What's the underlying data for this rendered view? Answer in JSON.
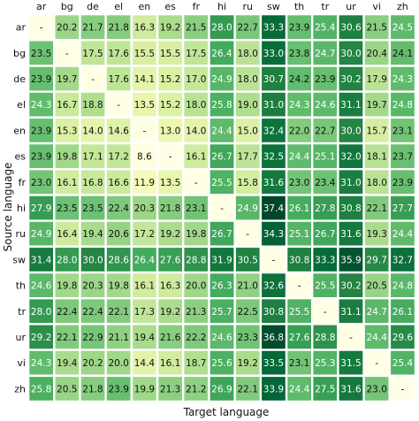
{
  "chart_data": {
    "type": "heatmap",
    "title": "",
    "xlabel": "Target language",
    "ylabel": "Source language",
    "x_categories": [
      "ar",
      "bg",
      "de",
      "el",
      "en",
      "es",
      "fr",
      "hi",
      "ru",
      "sw",
      "th",
      "tr",
      "ur",
      "vi",
      "zh"
    ],
    "y_categories": [
      "ar",
      "bg",
      "de",
      "el",
      "en",
      "es",
      "fr",
      "hi",
      "ru",
      "sw",
      "th",
      "tr",
      "ur",
      "vi",
      "zh"
    ],
    "x_axis_position": "top",
    "colormap": "YlGn",
    "color_range": [
      8,
      37.5
    ],
    "missing_label": "-",
    "values": [
      [
        null,
        20.2,
        21.7,
        21.8,
        16.3,
        19.2,
        21.5,
        28.0,
        22.7,
        33.3,
        23.9,
        25.4,
        30.6,
        21.5,
        24.5
      ],
      [
        23.5,
        null,
        17.5,
        17.6,
        15.5,
        15.5,
        17.5,
        26.4,
        18.0,
        33.0,
        23.8,
        24.7,
        30.0,
        20.4,
        24.1
      ],
      [
        23.9,
        19.7,
        null,
        17.6,
        14.1,
        15.2,
        17.0,
        24.9,
        18.0,
        30.7,
        24.2,
        23.9,
        30.2,
        17.9,
        24.3
      ],
      [
        24.3,
        16.7,
        18.8,
        null,
        13.5,
        15.2,
        18.0,
        25.8,
        19.0,
        31.0,
        24.3,
        24.6,
        31.1,
        19.7,
        24.8
      ],
      [
        23.9,
        15.3,
        14.0,
        14.6,
        null,
        13.0,
        14.0,
        24.4,
        15.0,
        32.4,
        22.0,
        22.7,
        30.0,
        15.7,
        23.1
      ],
      [
        23.9,
        19.8,
        17.1,
        17.2,
        8.6,
        null,
        16.1,
        26.7,
        17.7,
        32.5,
        24.4,
        25.1,
        32.0,
        18.1,
        23.7
      ],
      [
        23.0,
        16.1,
        16.8,
        16.6,
        11.9,
        13.5,
        null,
        25.5,
        15.8,
        31.6,
        23.0,
        23.4,
        31.0,
        18.0,
        23.9
      ],
      [
        27.9,
        23.5,
        23.5,
        22.4,
        20.3,
        21.8,
        23.1,
        null,
        24.9,
        37.4,
        26.1,
        27.8,
        30.8,
        22.1,
        27.7
      ],
      [
        24.9,
        16.4,
        19.4,
        20.6,
        17.2,
        19.2,
        19.8,
        26.7,
        null,
        34.3,
        25.1,
        26.7,
        31.6,
        19.3,
        24.4
      ],
      [
        31.4,
        28.0,
        30.0,
        28.6,
        26.4,
        27.6,
        28.8,
        31.9,
        30.5,
        null,
        30.8,
        33.3,
        35.9,
        29.7,
        32.7
      ],
      [
        24.6,
        19.8,
        20.3,
        19.8,
        16.1,
        16.3,
        20.0,
        26.3,
        21.0,
        32.6,
        null,
        25.5,
        30.2,
        20.5,
        24.8
      ],
      [
        28.0,
        22.4,
        22.4,
        22.1,
        17.3,
        19.2,
        21.3,
        25.7,
        22.5,
        30.8,
        25.5,
        null,
        31.1,
        24.7,
        26.1
      ],
      [
        29.2,
        22.1,
        22.9,
        21.1,
        19.4,
        21.6,
        22.2,
        24.6,
        23.3,
        36.8,
        27.6,
        28.8,
        null,
        24.4,
        29.6
      ],
      [
        24.3,
        19.4,
        20.2,
        20.0,
        14.4,
        16.1,
        18.7,
        25.6,
        19.2,
        33.5,
        23.1,
        25.3,
        31.5,
        null,
        25.4
      ],
      [
        25.8,
        20.5,
        21.8,
        23.9,
        19.9,
        21.3,
        21.2,
        26.9,
        22.1,
        33.9,
        24.4,
        27.5,
        31.6,
        23.0,
        null
      ]
    ]
  }
}
